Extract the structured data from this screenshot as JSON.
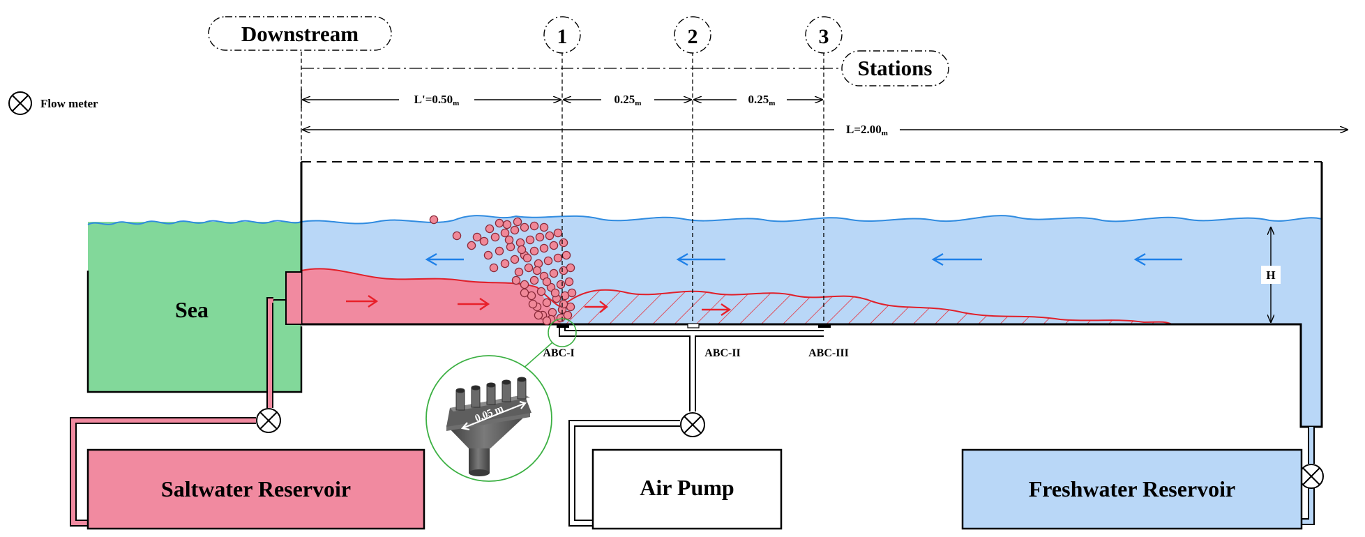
{
  "labels": {
    "downstream": "Downstream",
    "stations": "Stations",
    "station_numbers": [
      "1",
      "2",
      "3"
    ],
    "flow_meter": "Flow meter",
    "sea": "Sea",
    "saltwater_reservoir": "Saltwater Reservoir",
    "air_pump": "Air Pump",
    "freshwater_reservoir": "Freshwater Reservoir",
    "abc_labels": [
      "ABC-I",
      "ABC-II",
      "ABC-III"
    ],
    "height": "H",
    "nozzle_width": "0.05 m"
  },
  "dimensions": {
    "l_prime": {
      "main": "L'=0.50",
      "sub": "m"
    },
    "spacing_1": {
      "main": "0.25",
      "sub": "m"
    },
    "spacing_2": {
      "main": "0.25",
      "sub": "m"
    },
    "total_length": {
      "main": "L=2.00",
      "sub": "m"
    }
  },
  "colors": {
    "sea": "#82d89a",
    "saltwater": "#f18aa0",
    "freshwater": "#b9d7f7",
    "wave_line": "#2f8be0",
    "interface_line": "#e0202a",
    "fresh_arrow": "#1e80e8",
    "salt_arrow": "#e8202a",
    "bubble": "#f08898",
    "nozzle": "#5a5a5a",
    "zoom_circle": "#3cb043"
  }
}
